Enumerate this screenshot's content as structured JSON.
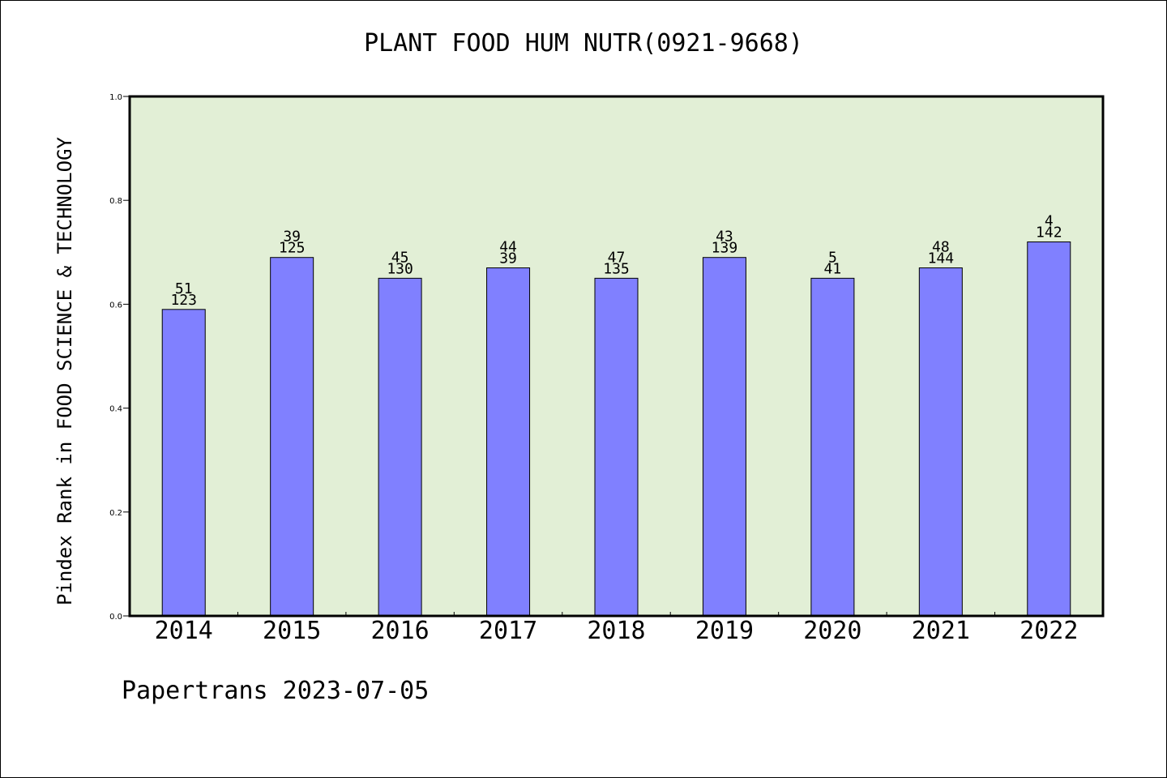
{
  "chart_data": {
    "type": "bar",
    "title": "PLANT FOOD HUM NUTR(0921-9668)",
    "xlabel": "",
    "ylabel": "Pindex Rank in FOOD SCIENCE & TECHNOLOGY",
    "ylim": [
      0.0,
      1.0
    ],
    "yticks": [
      "0.0",
      "0.2",
      "0.4",
      "0.6",
      "0.8",
      "1.0"
    ],
    "categories": [
      "2014",
      "2015",
      "2016",
      "2017",
      "2018",
      "2019",
      "2020",
      "2021",
      "2022"
    ],
    "values": [
      0.59,
      0.69,
      0.65,
      0.67,
      0.65,
      0.69,
      0.65,
      0.67,
      0.72
    ],
    "bar_labels_top": [
      "51",
      "39",
      "45",
      "44",
      "47",
      "43",
      "5",
      "48",
      "4"
    ],
    "bar_labels_bottom": [
      "123",
      "125",
      "130",
      "39",
      "135",
      "139",
      "41",
      "144",
      "142"
    ],
    "grid": false,
    "colors": {
      "bar": "#8080ff",
      "plot_background": "#e2efd6"
    }
  },
  "footer": "Papertrans 2023-07-05"
}
